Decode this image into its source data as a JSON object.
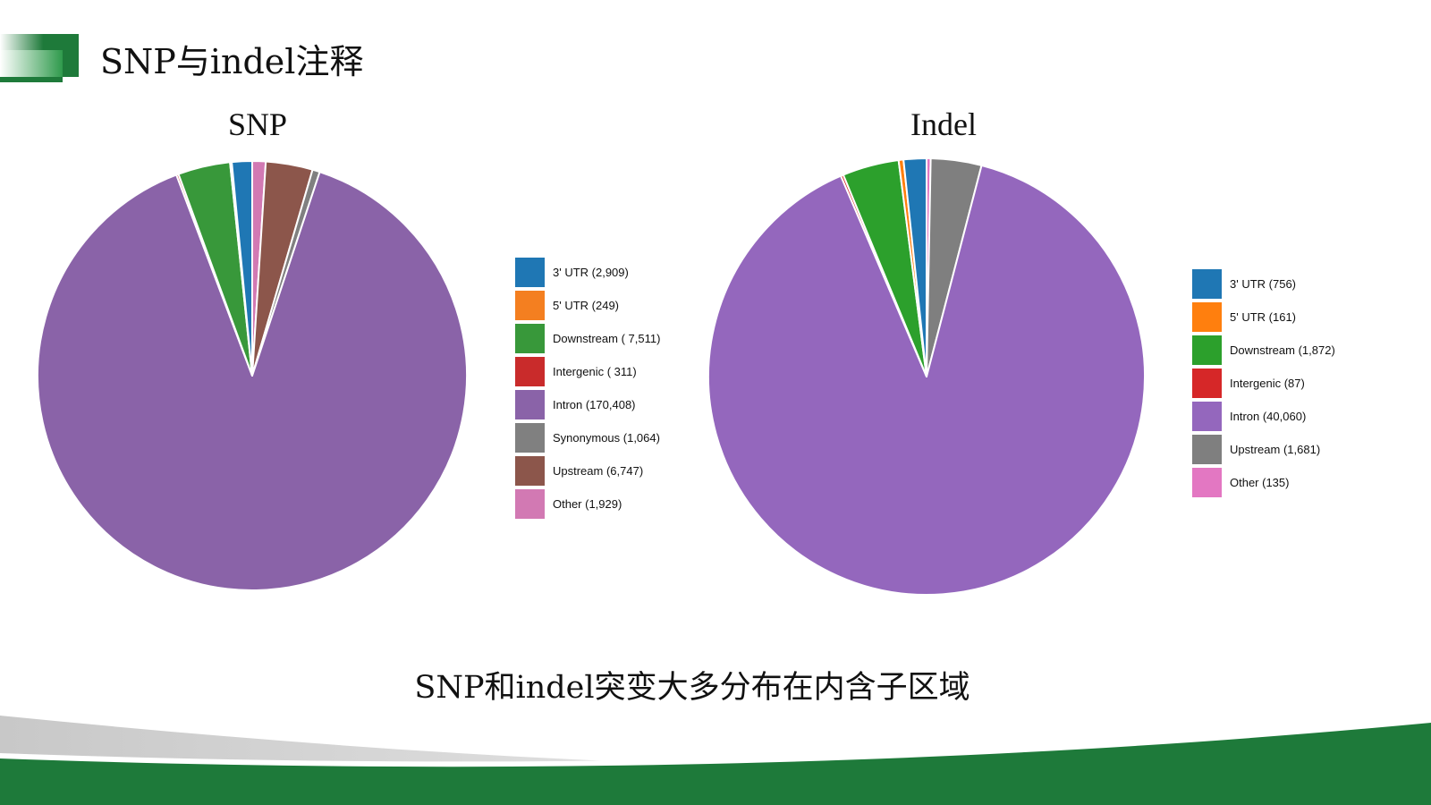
{
  "slide": {
    "title": "SNP与indel注释",
    "conclusion": "SNP和indel突变大多分布在内含子区域",
    "accent_color": "#1e7a3a"
  },
  "chart_data": [
    {
      "type": "pie",
      "title": "SNP",
      "legend_position": "right",
      "slices": [
        {
          "name": "3' UTR",
          "label": "3' UTR (2,909)",
          "value": 2909,
          "color": "#1f77b4"
        },
        {
          "name": "5' UTR",
          "label": "5' UTR (249)",
          "value": 249,
          "color": "#f47f20"
        },
        {
          "name": "Downstream",
          "label": "Downstream ( 7,511)",
          "value": 7511,
          "color": "#38983a"
        },
        {
          "name": "Intergenic",
          "label": "Intergenic ( 311)",
          "value": 311,
          "color": "#c92b2b"
        },
        {
          "name": "Intron",
          "label": "Intron (170,408)",
          "value": 170408,
          "color": "#8a63a8"
        },
        {
          "name": "Synonymous",
          "label": "Synonymous (1,064)",
          "value": 1064,
          "color": "#808080"
        },
        {
          "name": "Upstream",
          "label": "Upstream (6,747)",
          "value": 6747,
          "color": "#8c564b"
        },
        {
          "name": "Other",
          "label": "Other (1,929)",
          "value": 1929,
          "color": "#d279b3"
        }
      ],
      "pie_order": [
        "Other",
        "Upstream",
        "Synonymous",
        "Intron",
        "Intergenic",
        "Downstream",
        "5' UTR",
        "3' UTR"
      ]
    },
    {
      "type": "pie",
      "title": "Indel",
      "legend_position": "right",
      "slices": [
        {
          "name": "3' UTR",
          "label": "3' UTR (756)",
          "value": 756,
          "color": "#1f77b4"
        },
        {
          "name": "5' UTR",
          "label": "5' UTR (161)",
          "value": 161,
          "color": "#ff7f0e"
        },
        {
          "name": "Downstream",
          "label": "Downstream (1,872)",
          "value": 1872,
          "color": "#2ca02c"
        },
        {
          "name": "Intergenic",
          "label": "Intergenic (87)",
          "value": 87,
          "color": "#d62728"
        },
        {
          "name": "Intron",
          "label": "Intron (40,060)",
          "value": 40060,
          "color": "#9467bd"
        },
        {
          "name": "Upstream",
          "label": "Upstream (1,681)",
          "value": 1681,
          "color": "#7f7f7f"
        },
        {
          "name": "Other",
          "label": "Other (135)",
          "value": 135,
          "color": "#e377c2"
        }
      ],
      "pie_order": [
        "Other",
        "Upstream",
        "Intron",
        "Intergenic",
        "Downstream",
        "5' UTR",
        "3' UTR"
      ]
    }
  ]
}
